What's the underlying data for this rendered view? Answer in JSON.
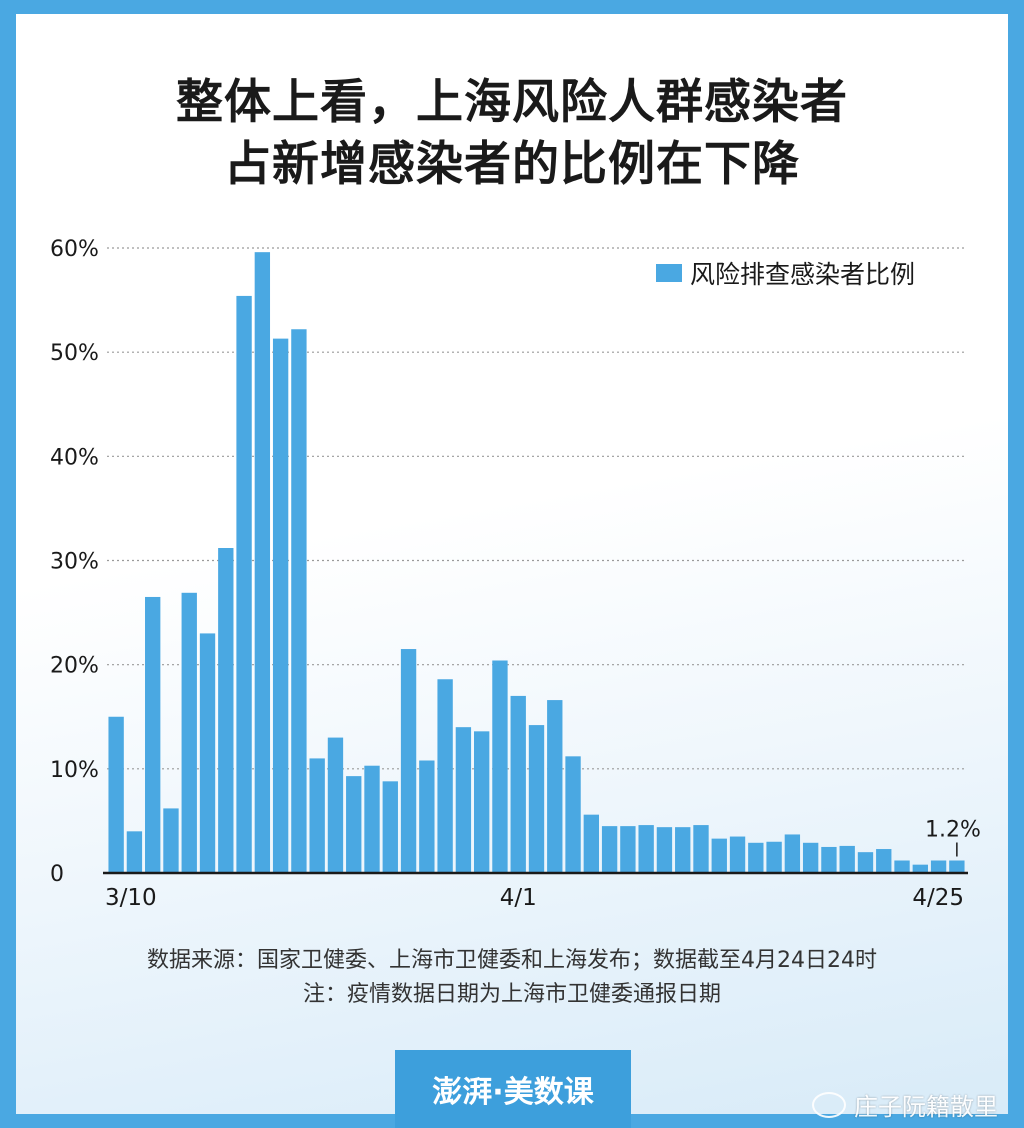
{
  "title": {
    "line1": "整体上看，上海风险人群感染者",
    "line2": "占新增感染者的比例在下降"
  },
  "colors": {
    "bar": "#4aa8e2",
    "frame": "#4aa8e2",
    "text": "#1a1a1a"
  },
  "chart_data": {
    "type": "bar",
    "series": [
      {
        "name": "风险排查感染者比例",
        "values": [
          15.0,
          4.0,
          26.5,
          6.2,
          26.9,
          23.0,
          31.2,
          55.4,
          59.6,
          51.3,
          52.2,
          11.0,
          13.0,
          9.3,
          10.3,
          8.8,
          21.5,
          10.8,
          18.6,
          14.0,
          13.6,
          20.4,
          17.0,
          14.2,
          16.6,
          11.2,
          5.6,
          4.5,
          4.5,
          4.6,
          4.4,
          4.4,
          4.6,
          3.3,
          3.5,
          2.9,
          3.0,
          3.7,
          2.9,
          2.5,
          2.6,
          2.0,
          2.3,
          1.2,
          0.8,
          1.2,
          1.2
        ]
      }
    ],
    "x_tick_labels": [
      {
        "index": 0,
        "label": "3/10"
      },
      {
        "index": 22,
        "label": "4/1"
      },
      {
        "index": 46,
        "label": "4/25"
      }
    ],
    "y_ticks": [
      {
        "value": 0,
        "label": "0"
      },
      {
        "value": 10,
        "label": "10%"
      },
      {
        "value": 20,
        "label": "20%"
      },
      {
        "value": 30,
        "label": "30%"
      },
      {
        "value": 40,
        "label": "40%"
      },
      {
        "value": 50,
        "label": "50%"
      },
      {
        "value": 60,
        "label": "60%"
      }
    ],
    "ylim": [
      0,
      60
    ],
    "grid": true,
    "legend_position": "top-right",
    "annotation": {
      "index": 46,
      "label": "1.2%"
    }
  },
  "source": {
    "line1": "数据来源：国家卫健委、上海市卫健委和上海发布；数据截至4月24日24时",
    "line2": "注：疫情数据日期为上海市卫健委通报日期"
  },
  "logo": {
    "text": "澎湃·美数课"
  },
  "watermark": {
    "text": "庄子阮籍散里"
  }
}
